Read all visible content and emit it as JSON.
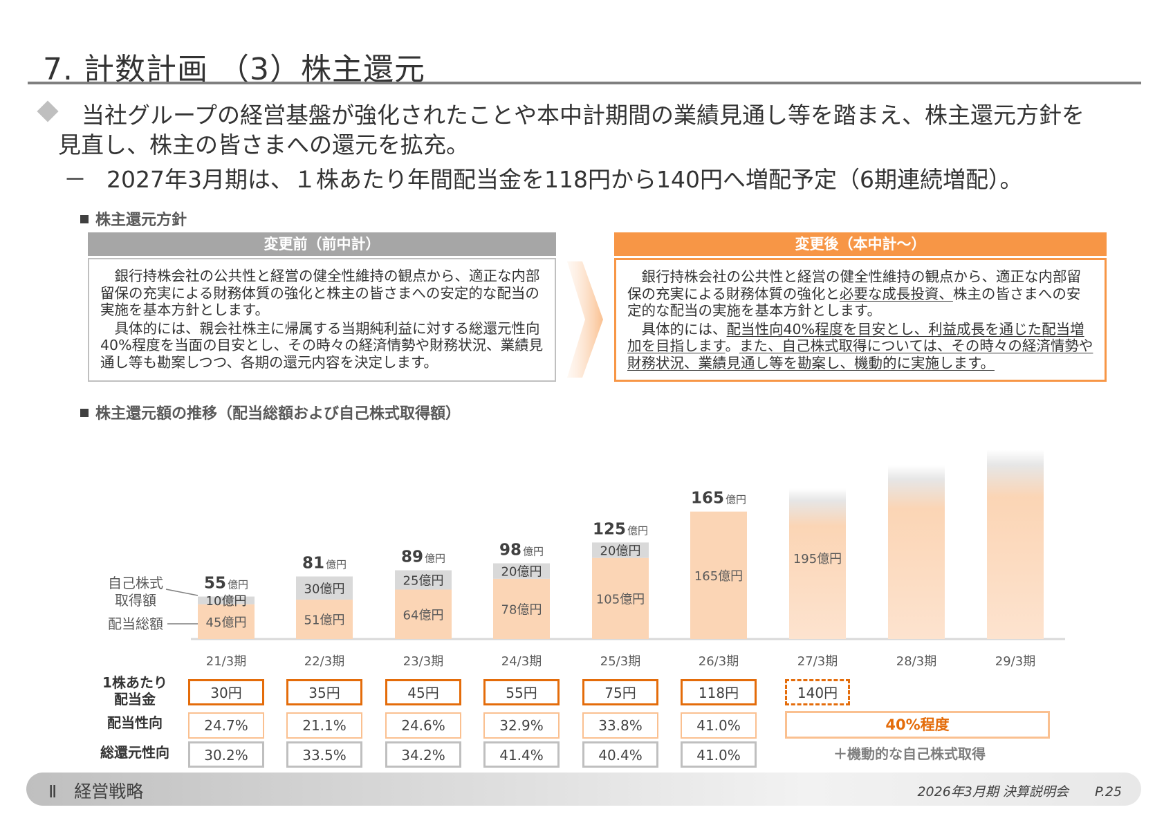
{
  "header": {
    "title": "7. 計数計画 （3）株主還元"
  },
  "bullets": {
    "line1": "当社グループの経営基盤が強化されたことや本中計期間の業績見通し等を踏まえ、株主還元方針を",
    "line2": "見直し、株主の皆さまへの還元を拡充。",
    "sub_dash": "－",
    "sub": "2027年3月期は、１株あたり年間配当金を118円から140円へ増配予定（6期連続増配）。"
  },
  "policy": {
    "heading": "株主還元方針",
    "before": {
      "header": "変更前（前中計）",
      "p1": "銀行持株会社の公共性と経営の健全性維持の観点から、適正な内部留保の充実による財務体質の強化と株主の皆さまへの安定的な配当の実施を基本方針とします。",
      "p2": "具体的には、親会社株主に帰属する当期純利益に対する総還元性向40%程度を当面の目安とし、その時々の経済情勢や財務状況、業績見通し等も勘案しつつ、各期の還元内容を決定します。"
    },
    "after": {
      "header": "変更後（本中計～）",
      "p1a": "銀行持株会社の公共性と経営の健全性維持の観点から、適正な内部留保の充実による財務体質の強化と",
      "p1b": "必要な成長投資、",
      "p1c": "株主の皆さまへの安定的な配当の実施を基本方針とします。",
      "p2a": "具体的には、",
      "p2b": "配当性向40%程度を目安とし、利益成長を通じた配当増加を目指します",
      "p2c": "。",
      "p2d": "また、自己株式取得については、その時々の経済情勢や財務状況、業績見通し等を勘案し、機動的に実施します。"
    }
  },
  "trend_heading": "株主還元額の推移（配当総額および自己株式取得額）",
  "chart_data": {
    "type": "bar",
    "stacked": true,
    "categories": [
      "21/3期",
      "22/3期",
      "23/3期",
      "24/3期",
      "25/3期",
      "26/3期",
      "27/3期",
      "28/3期",
      "29/3期"
    ],
    "series": [
      {
        "name": "配当総額",
        "values": [
          45,
          51,
          64,
          78,
          105,
          165,
          195,
          null,
          null
        ],
        "color": "#fbd5b5"
      },
      {
        "name": "自己株式取得額",
        "values": [
          10,
          30,
          25,
          20,
          20,
          null,
          null,
          null,
          null
        ],
        "color": "#d9d9d9"
      }
    ],
    "totals": [
      55,
      81,
      89,
      98,
      125,
      165,
      null,
      null,
      null
    ],
    "total_unit": "億円",
    "segment_unit": "億円",
    "dividend_labels": [
      "45億円",
      "51億円",
      "64億円",
      "78億円",
      "105億円",
      "165億円",
      "195億円",
      "",
      ""
    ],
    "buyback_labels": [
      "10億円",
      "30億円",
      "25億円",
      "20億円",
      "20億円",
      "",
      "",
      "",
      ""
    ],
    "forecast_bars": [
      {
        "category": "27/3期",
        "approx_value": 195
      },
      {
        "category": "28/3期",
        "approx_value": 225
      },
      {
        "category": "29/3期",
        "approx_value": 245
      }
    ],
    "legend": {
      "buyback": "自己株式\n取得額",
      "buyback_line1": "自己株式",
      "buyback_line2": "取得額",
      "dividend": "配当総額"
    },
    "ylim": [
      0,
      260
    ],
    "grid": false
  },
  "table": {
    "dps_label_1": "1株あたり",
    "dps_label_2": "配当金",
    "dps": [
      "30円",
      "35円",
      "45円",
      "55円",
      "75円",
      "118円",
      "140円"
    ],
    "payout_label": "配当性向",
    "payout": [
      "24.7%",
      "21.1%",
      "24.6%",
      "32.9%",
      "33.8%",
      "41.0%"
    ],
    "payout_target": "40%程度",
    "total_label": "総還元性向",
    "total": [
      "30.2%",
      "33.5%",
      "34.2%",
      "41.4%",
      "40.4%",
      "41.0%"
    ],
    "total_note": "＋機動的な自己株式取得"
  },
  "footer": {
    "section": "Ⅱ　経営戦略",
    "event": "2026年3月期 決算説明会",
    "page": "P.25"
  },
  "colors": {
    "accent_orange": "#f79646",
    "dark_orange": "#e46c0a",
    "dividend_fill": "#fbd5b5",
    "buyback_fill": "#d9d9d9",
    "gray_header": "#a6a6a6"
  }
}
